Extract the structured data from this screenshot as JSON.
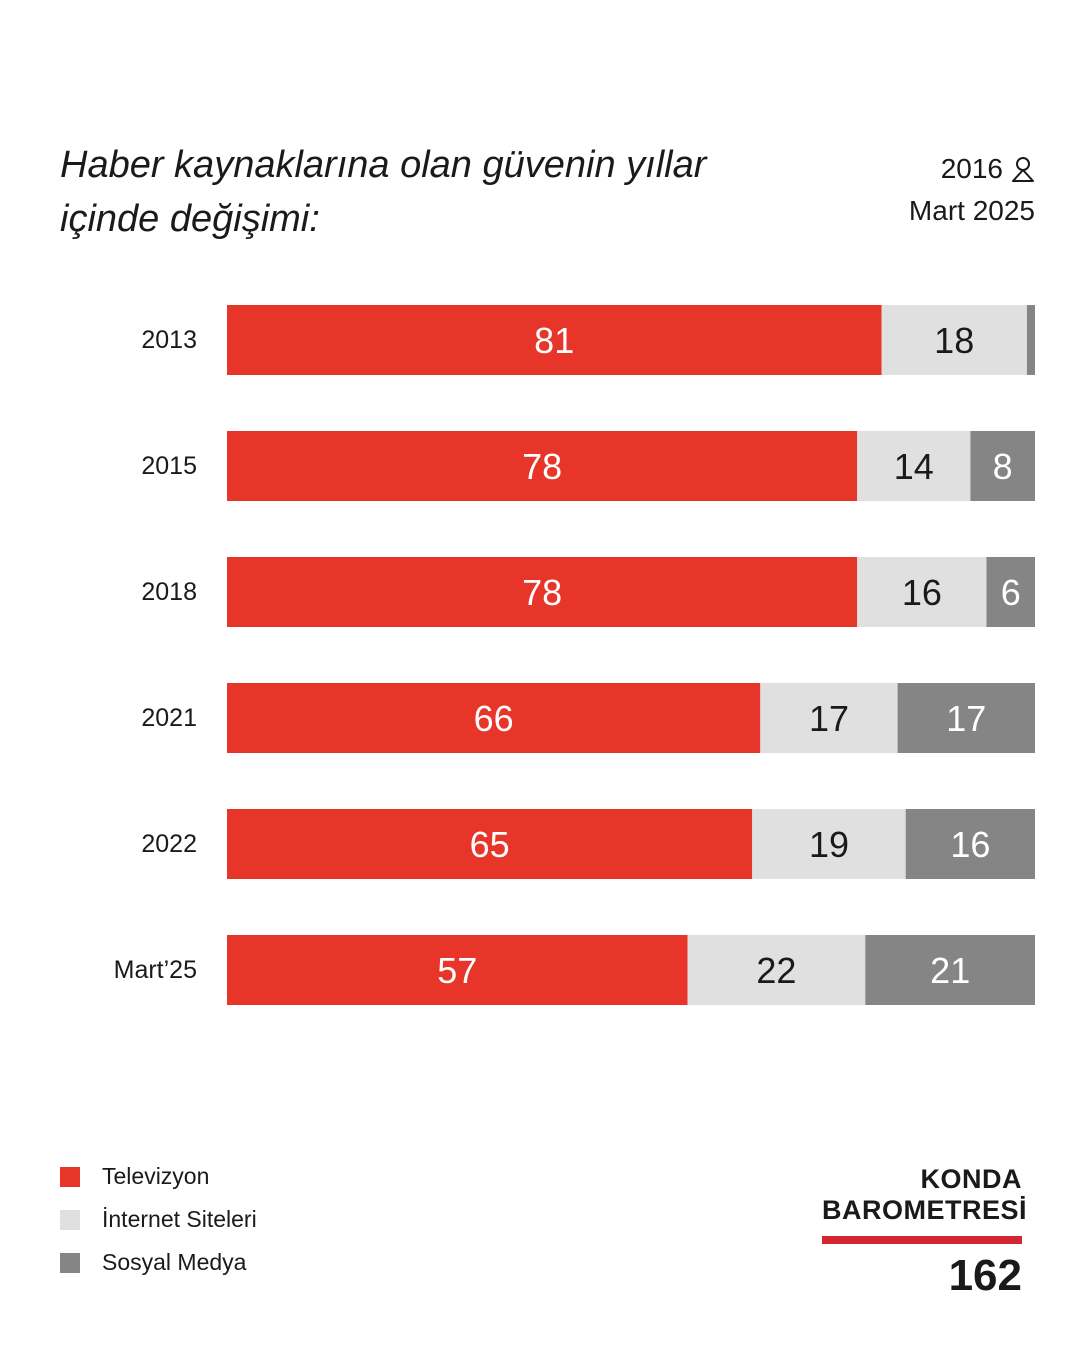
{
  "title_lines": [
    "Haber kaynaklarına olan güvenin yıllar",
    "içinde değişimi:"
  ],
  "sample_size": "2016",
  "sample_icon": "person-icon",
  "date": "Mart 2025",
  "colors": {
    "televizyon": "#e8352a",
    "internet": "#e0e0e0",
    "sosyal": "#858585"
  },
  "legend": [
    "Televizyon",
    "İnternet Siteleri",
    "Sosyal Medya"
  ],
  "brand": {
    "line1": "KONDA",
    "line2": "BAROMETRESİ",
    "number": "162"
  },
  "chart_data": {
    "type": "bar",
    "stacked": true,
    "orientation": "horizontal",
    "categories": [
      "2013",
      "2015",
      "2018",
      "2021",
      "2022",
      "Mart’25"
    ],
    "series": [
      {
        "name": "Televizyon",
        "values": [
          81,
          78,
          78,
          66,
          65,
          57
        ],
        "labels": [
          "81",
          "78",
          "78",
          "66",
          "65",
          "57"
        ]
      },
      {
        "name": "İnternet Siteleri",
        "values": [
          18,
          14,
          16,
          17,
          19,
          22
        ],
        "labels": [
          "18",
          "14",
          "16",
          "17",
          "19",
          "22"
        ]
      },
      {
        "name": "Sosyal Medya",
        "values": [
          1,
          8,
          6,
          17,
          16,
          21
        ],
        "labels": [
          "",
          "8",
          "6",
          "17",
          "16",
          "21"
        ]
      }
    ],
    "xlim": [
      0,
      100
    ],
    "legend_position": "bottom-left",
    "grid": false
  }
}
